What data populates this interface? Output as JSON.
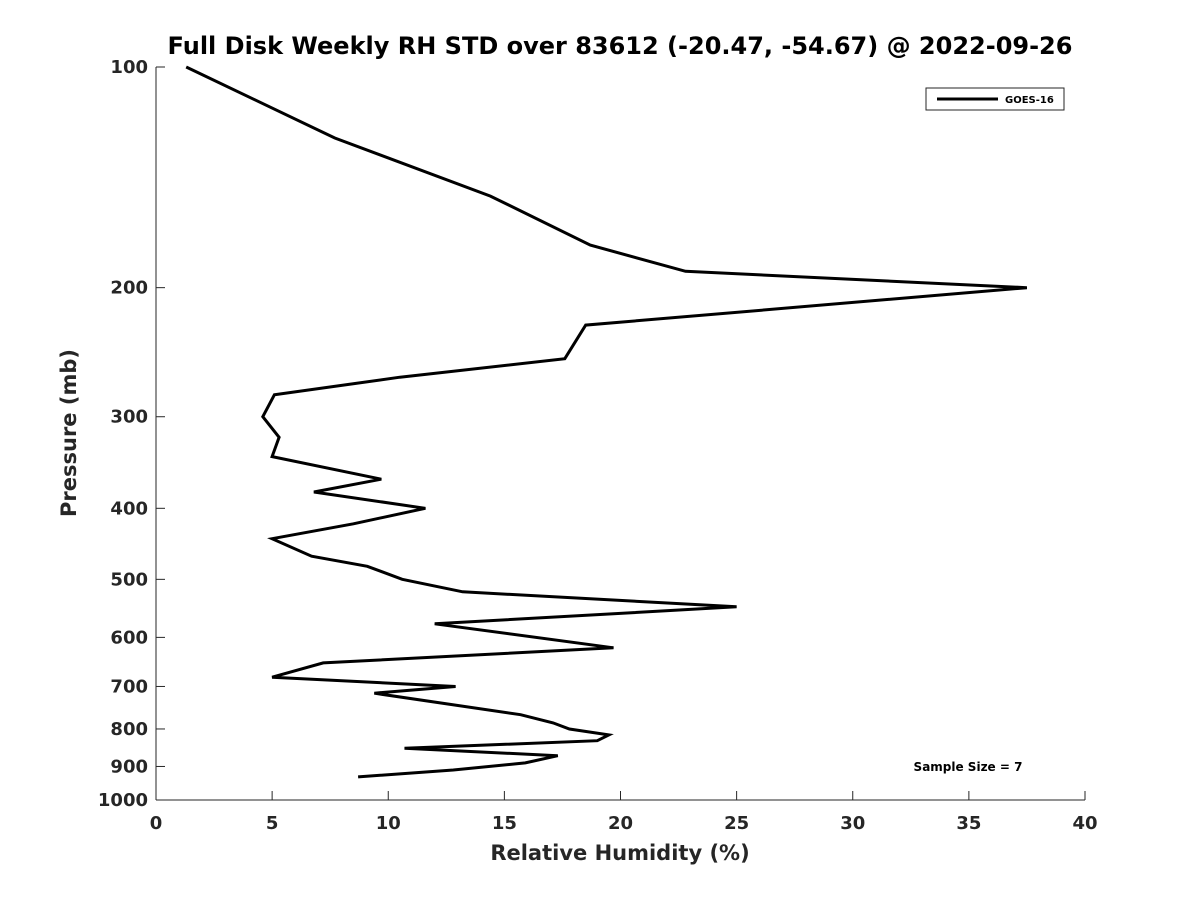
{
  "chart_data": {
    "type": "line",
    "title": "Full Disk Weekly RH STD over 83612 (-20.47, -54.67) @ 2022-09-26",
    "xlabel": "Relative Humidity (%)",
    "ylabel": "Pressure (mb)",
    "xlim": [
      0,
      40
    ],
    "ylim": [
      100,
      1000
    ],
    "y_scale": "log",
    "y_reversed": true,
    "x_ticks": [
      0,
      5,
      10,
      15,
      20,
      25,
      30,
      35,
      40
    ],
    "x_tick_labels": [
      "0",
      "5",
      "10",
      "15",
      "20",
      "25",
      "30",
      "35",
      "40"
    ],
    "y_ticks": [
      100,
      200,
      300,
      400,
      500,
      600,
      700,
      800,
      900,
      1000
    ],
    "y_tick_labels": [
      "100",
      "200",
      "300",
      "400",
      "500",
      "600",
      "700",
      "800",
      "900",
      "1000"
    ],
    "grid": false,
    "legend_position": "top-right",
    "series": [
      {
        "name": "GOES-16",
        "color": "#000000",
        "points": [
          [
            1.3,
            100
          ],
          [
            7.7,
            125
          ],
          [
            14.4,
            150
          ],
          [
            18.7,
            175
          ],
          [
            22.8,
            190
          ],
          [
            37.5,
            200
          ],
          [
            18.5,
            225
          ],
          [
            17.6,
            250
          ],
          [
            10.5,
            265
          ],
          [
            5.1,
            280
          ],
          [
            4.6,
            300
          ],
          [
            5.3,
            320
          ],
          [
            5.0,
            340
          ],
          [
            9.7,
            365
          ],
          [
            6.8,
            380
          ],
          [
            11.6,
            400
          ],
          [
            8.5,
            420
          ],
          [
            5.0,
            440
          ],
          [
            6.7,
            465
          ],
          [
            9.1,
            480
          ],
          [
            10.6,
            500
          ],
          [
            13.2,
            520
          ],
          [
            25.0,
            545
          ],
          [
            12.0,
            575
          ],
          [
            19.7,
            620
          ],
          [
            7.2,
            650
          ],
          [
            5.0,
            680
          ],
          [
            12.9,
            700
          ],
          [
            9.4,
            715
          ],
          [
            15.7,
            765
          ],
          [
            17.1,
            785
          ],
          [
            17.8,
            800
          ],
          [
            19.5,
            815
          ],
          [
            19.0,
            830
          ],
          [
            10.7,
            850
          ],
          [
            17.3,
            870
          ],
          [
            15.9,
            890
          ],
          [
            12.8,
            910
          ],
          [
            8.7,
            930
          ]
        ]
      }
    ],
    "annotations": [
      "Sample Size = 7"
    ]
  }
}
